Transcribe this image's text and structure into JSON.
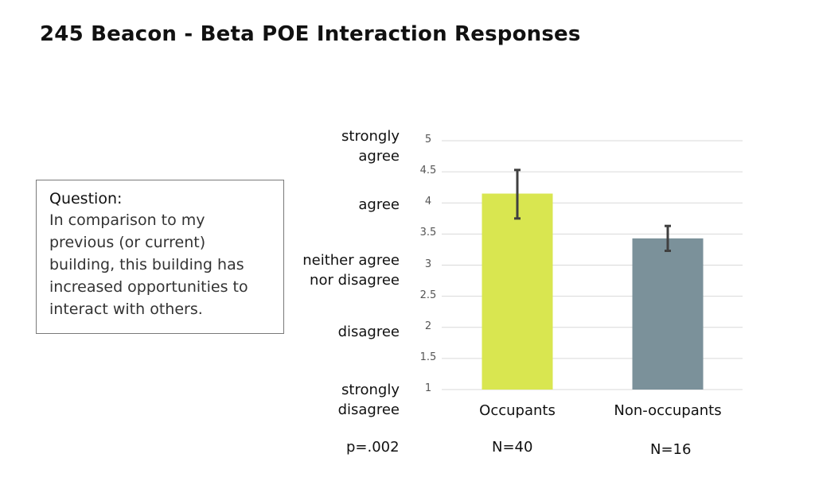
{
  "title": "245 Beacon - Beta POE Interaction Responses",
  "question": {
    "heading": "Question:",
    "text": "In comparison to my previous (or current) building, this building has increased opportunities to interact with others."
  },
  "likert_labels": [
    {
      "value": 5,
      "text_line1": "strongly",
      "text_line2": "agree"
    },
    {
      "value": 4,
      "text_line1": "agree",
      "text_line2": ""
    },
    {
      "value": 3,
      "text_line1": "neither agree",
      "text_line2": "nor disagree"
    },
    {
      "value": 2,
      "text_line1": "disagree",
      "text_line2": ""
    },
    {
      "value": 1,
      "text_line1": "strongly",
      "text_line2": "disagree"
    }
  ],
  "p_value": "p=.002",
  "sample_sizes": [
    "N=40",
    "N=16"
  ],
  "chart_data": {
    "type": "bar",
    "title": "",
    "categories": [
      "Occupants",
      "Non-occupants"
    ],
    "values": [
      4.15,
      3.43
    ],
    "error_low": [
      3.75,
      3.23
    ],
    "error_high": [
      4.53,
      3.63
    ],
    "colors": [
      "#d9e650",
      "#7b919a"
    ],
    "xlabel": "",
    "ylabel": "",
    "ylim": [
      1,
      5
    ],
    "yticks": [
      "1",
      "1.5",
      "2",
      "2.5",
      "3",
      "3.5",
      "4",
      "4.5",
      "5"
    ],
    "grid": true,
    "legend": "none"
  }
}
